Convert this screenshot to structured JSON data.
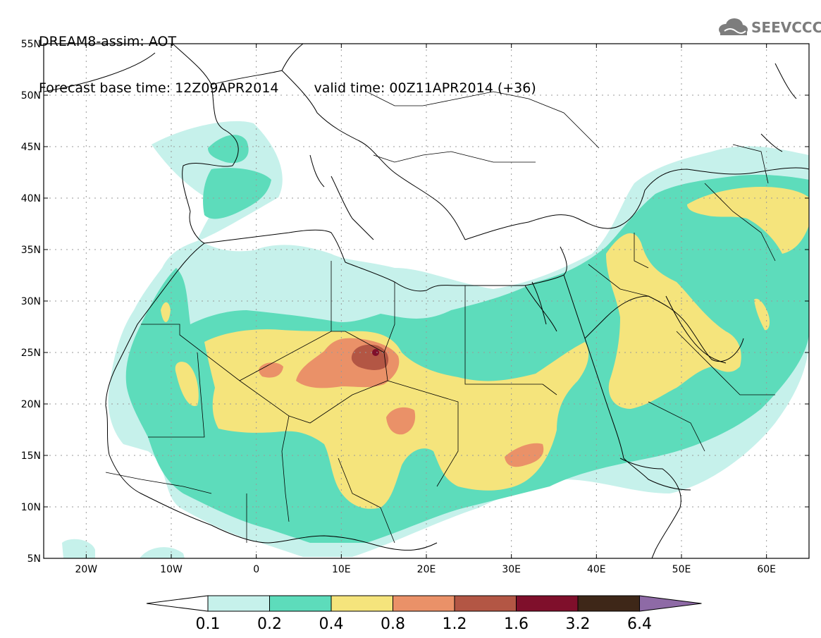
{
  "header": {
    "line1": "DREAM8-assim: AOT",
    "base_time": "Forecast base time: 12Z09APR2014",
    "valid_time": "valid time: 00Z11APR2014 (+36)",
    "logo_text": "SEEVCCC"
  },
  "axes": {
    "lat_labels": [
      "55N",
      "50N",
      "45N",
      "40N",
      "35N",
      "30N",
      "25N",
      "20N",
      "15N",
      "10N",
      "5N"
    ],
    "lat_values": [
      55,
      50,
      45,
      40,
      35,
      30,
      25,
      20,
      15,
      10,
      5
    ],
    "lon_labels": [
      "20W",
      "10W",
      "0",
      "10E",
      "20E",
      "30E",
      "40E",
      "50E",
      "60E"
    ],
    "lon_values": [
      -20,
      -10,
      0,
      10,
      20,
      30,
      40,
      50,
      60
    ],
    "lon_range": [
      -25,
      65
    ],
    "lat_range": [
      5,
      55
    ]
  },
  "legend": {
    "labels": [
      "0.1",
      "0.2",
      "0.4",
      "0.8",
      "1.2",
      "1.6",
      "3.2",
      "6.4"
    ],
    "colors": [
      "#ffffff",
      "#c6f1eb",
      "#5ddcbb",
      "#f5e47c",
      "#ea9168",
      "#b35644",
      "#7f0f2b",
      "#3e2718",
      "#8e6aa6"
    ]
  },
  "colors": {
    "level1": "#c6f1eb",
    "level2": "#5ddcbb",
    "level3": "#f5e47c",
    "level4": "#ea9168",
    "level5": "#b35644",
    "level6": "#7f0f2b",
    "coast": "#000000",
    "grid": "#9a9a9a"
  }
}
